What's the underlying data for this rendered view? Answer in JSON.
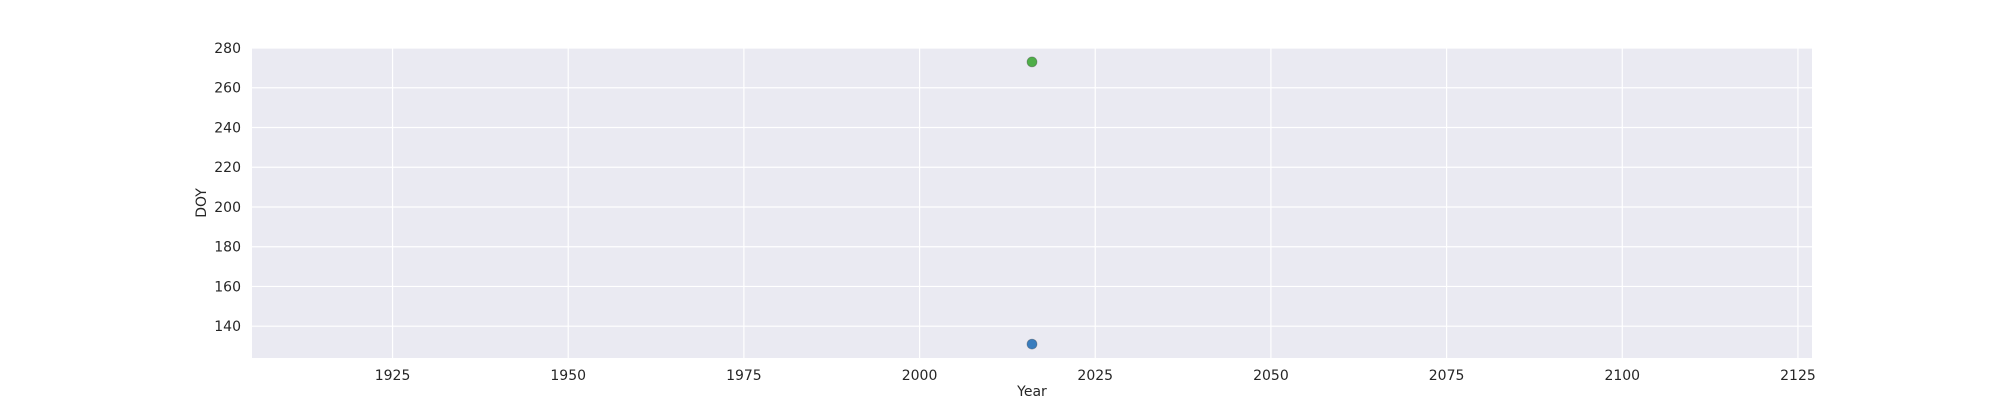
{
  "chart_data": {
    "type": "scatter",
    "title": "",
    "xlabel": "Year",
    "ylabel": "DOY",
    "xlim": [
      1905,
      2127
    ],
    "ylim": [
      124,
      280
    ],
    "x_ticks": [
      1925,
      1950,
      1975,
      2000,
      2025,
      2050,
      2075,
      2100,
      2125
    ],
    "y_ticks": [
      140,
      160,
      180,
      200,
      220,
      240,
      260,
      280
    ],
    "grid": true,
    "legend": "none",
    "background_color": "#eaeaf2",
    "grid_color": "#ffffff",
    "series": [
      {
        "color": "#3a7dbe",
        "points": [
          {
            "x": 2016,
            "y": 131
          }
        ]
      },
      {
        "color": "#4fae49",
        "points": [
          {
            "x": 2016,
            "y": 273
          }
        ]
      }
    ]
  }
}
